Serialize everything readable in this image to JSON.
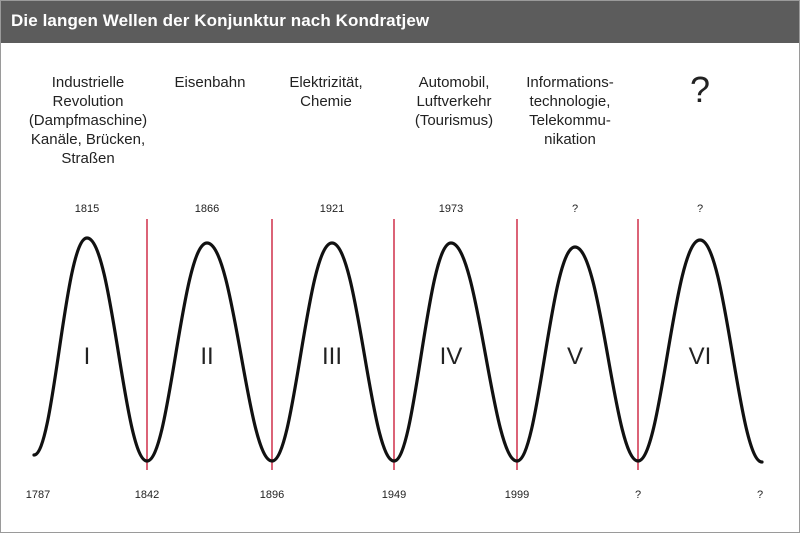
{
  "title": "Die langen Wellen der Konjunktur nach Kondratjew",
  "colors": {
    "header_bg": "#5c5c5c",
    "divider": "#c8102e",
    "curve": "#111111"
  },
  "waves": [
    {
      "numeral": "I",
      "label": "Industrielle\nRevolution\n(Dampfmaschine)\nKanäle, Brücken,\nStraßen",
      "peak_year": "1815"
    },
    {
      "numeral": "II",
      "label": "Eisenbahn",
      "peak_year": "1866"
    },
    {
      "numeral": "III",
      "label": "Elektrizität,\nChemie",
      "peak_year": "1921"
    },
    {
      "numeral": "IV",
      "label": "Automobil,\nLuftverkehr\n(Tourismus)",
      "peak_year": "1973"
    },
    {
      "numeral": "V",
      "label": "Informations-\ntechnologie,\nTelekommu-\nnikation",
      "peak_year": "?"
    },
    {
      "numeral": "VI",
      "label": "?",
      "peak_year": "?"
    }
  ],
  "trough_years": [
    "1787",
    "1842",
    "1896",
    "1949",
    "1999",
    "?",
    "?"
  ]
}
